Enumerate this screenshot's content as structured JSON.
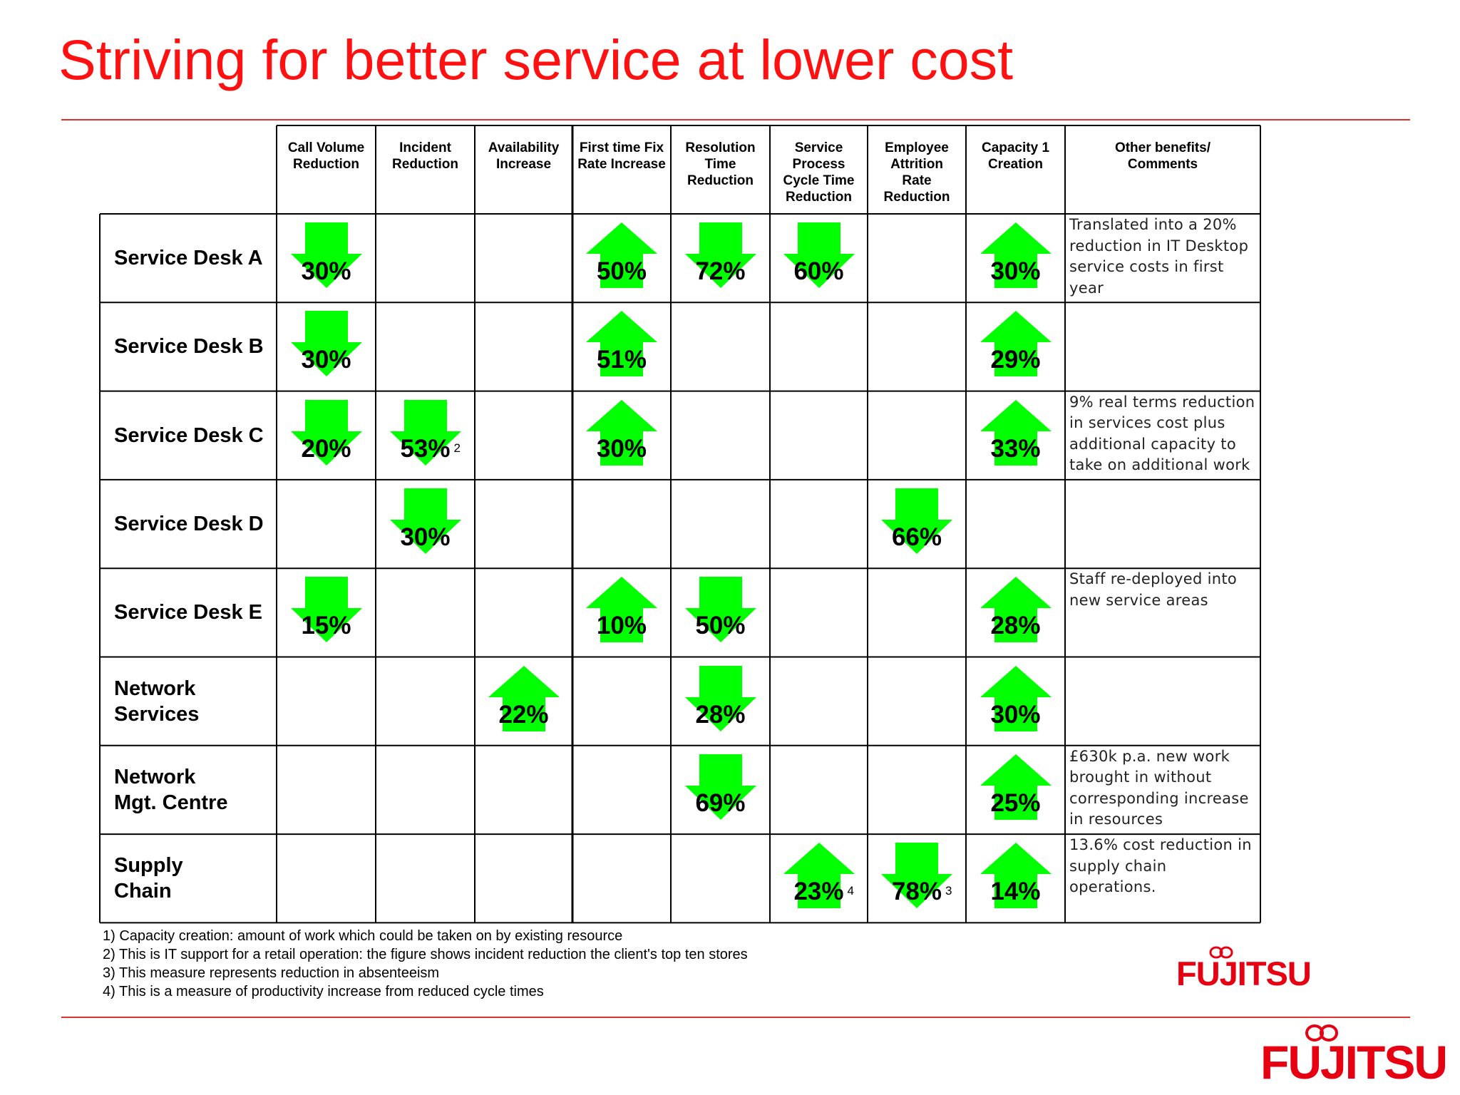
{
  "title": "Striving for better service at lower cost",
  "columns": [
    "Call Volume\nReduction",
    "Incident\nReduction",
    "Availability\nIncrease",
    "First time Fix\nRate Increase",
    "Resolution\nTime\nReduction",
    "Service\nProcess\nCycle Time\nReduction",
    "Employee\nAttrition\nRate\nReduction",
    "Capacity 1\nCreation",
    "Other benefits/\nComments"
  ],
  "rows": [
    {
      "label": "Service Desk A",
      "cells": [
        {
          "col": 0,
          "dir": "down",
          "value": "30%"
        },
        {
          "col": 3,
          "dir": "up",
          "value": "50%"
        },
        {
          "col": 4,
          "dir": "down",
          "value": "72%"
        },
        {
          "col": 5,
          "dir": "down",
          "value": "60%"
        },
        {
          "col": 7,
          "dir": "up",
          "value": "30%"
        }
      ],
      "comment": "Translated into a 20% reduction in IT Desktop service costs in first year"
    },
    {
      "label": "Service Desk B",
      "cells": [
        {
          "col": 0,
          "dir": "down",
          "value": "30%"
        },
        {
          "col": 3,
          "dir": "up",
          "value": "51%"
        },
        {
          "col": 7,
          "dir": "up",
          "value": "29%"
        }
      ],
      "comment": ""
    },
    {
      "label": "Service Desk C",
      "cells": [
        {
          "col": 0,
          "dir": "down",
          "value": "20%"
        },
        {
          "col": 1,
          "dir": "down",
          "value": "53%",
          "sup": "2"
        },
        {
          "col": 3,
          "dir": "up",
          "value": "30%"
        },
        {
          "col": 7,
          "dir": "up",
          "value": "33%"
        }
      ],
      "comment": "9% real terms reduction in services cost plus additional capacity to take on additional work"
    },
    {
      "label": "Service Desk D",
      "cells": [
        {
          "col": 1,
          "dir": "down",
          "value": "30%"
        },
        {
          "col": 6,
          "dir": "down",
          "value": "66%"
        }
      ],
      "comment": ""
    },
    {
      "label": "Service Desk E",
      "cells": [
        {
          "col": 0,
          "dir": "down",
          "value": "15%"
        },
        {
          "col": 3,
          "dir": "up",
          "value": "10%"
        },
        {
          "col": 4,
          "dir": "down",
          "value": "50%"
        },
        {
          "col": 7,
          "dir": "up",
          "value": "28%"
        }
      ],
      "comment": "Staff re-deployed into new service areas"
    },
    {
      "label": "Network\nServices",
      "cells": [
        {
          "col": 2,
          "dir": "up",
          "value": "22%"
        },
        {
          "col": 4,
          "dir": "down",
          "value": "28%"
        },
        {
          "col": 7,
          "dir": "up",
          "value": "30%"
        }
      ],
      "comment": ""
    },
    {
      "label": "Network\nMgt. Centre",
      "cells": [
        {
          "col": 4,
          "dir": "down",
          "value": "69%"
        },
        {
          "col": 7,
          "dir": "up",
          "value": "25%"
        }
      ],
      "comment": "£630k p.a. new work brought in without corresponding increase in resources"
    },
    {
      "label": "Supply\nChain",
      "cells": [
        {
          "col": 5,
          "dir": "up",
          "value": "23%",
          "sup": "4"
        },
        {
          "col": 6,
          "dir": "down",
          "value": "78%",
          "sup": "3"
        },
        {
          "col": 7,
          "dir": "up",
          "value": "14%"
        }
      ],
      "comment": "13.6% cost reduction in supply chain operations."
    }
  ],
  "footnotes": [
    "1) Capacity creation: amount of work which could be taken on by existing resource",
    "2) This is IT support for a retail operation: the figure shows incident reduction the client's top ten stores",
    "3) This measure represents reduction in absenteeism",
    "4) This is a measure of productivity increase from reduced cycle times"
  ],
  "logo_text": "FUJITSU",
  "colors": {
    "title": "#ff1111",
    "arrow": "#00ff00",
    "rule": "#e03030",
    "logo": "#e60012"
  }
}
